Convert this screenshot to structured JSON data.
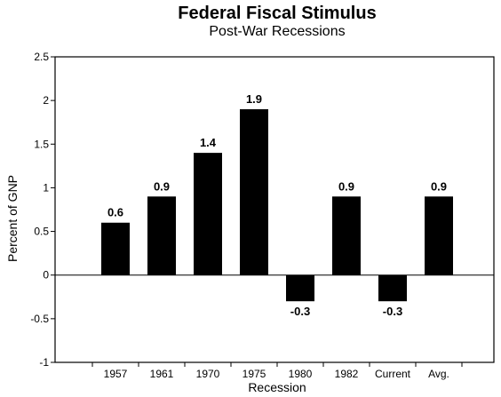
{
  "chart_data": {
    "type": "bar",
    "title": "Federal Fiscal Stimulus",
    "subtitle": "Post-War Recessions",
    "xlabel": "Recession",
    "ylabel": "Percent of GNP",
    "categories": [
      "1957",
      "1961",
      "1970",
      "1975",
      "1980",
      "1982",
      "Current",
      "Avg."
    ],
    "values": [
      0.6,
      0.9,
      1.4,
      1.9,
      -0.3,
      0.9,
      -0.3,
      0.9
    ],
    "data_labels": [
      "0.6",
      "0.9",
      "1.4",
      "1.9",
      "-0.3",
      "0.9",
      "-0.3",
      "0.9"
    ],
    "ylim": [
      -1,
      2.5
    ],
    "yticks": [
      -1,
      -0.5,
      0,
      0.5,
      1,
      1.5,
      2,
      2.5
    ],
    "ytick_labels": [
      "-1",
      "-0.5",
      "0",
      "0.5",
      "1",
      "1.5",
      "2",
      "2.5"
    ],
    "bar_color": "#000000",
    "grid": false,
    "legend": false
  }
}
